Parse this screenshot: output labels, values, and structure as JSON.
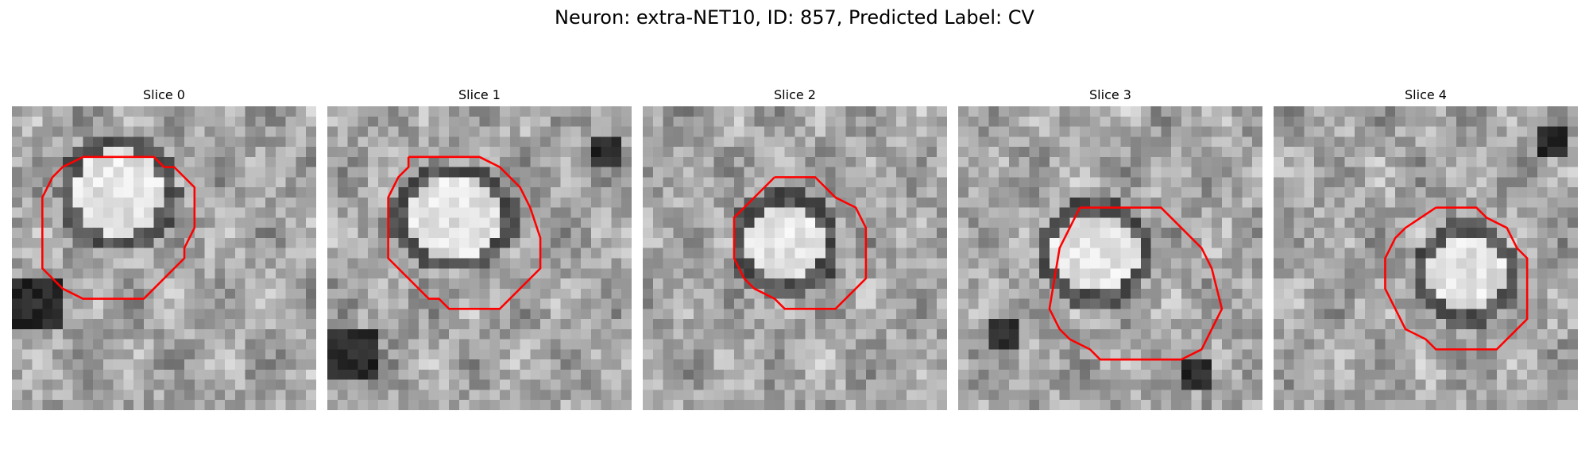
{
  "suptitle": "Neuron: extra-NET10, ID: 857, Predicted Label: CV",
  "panels": [
    {
      "title": "Slice 0"
    },
    {
      "title": "Slice 1"
    },
    {
      "title": "Slice 2"
    },
    {
      "title": "Slice 3"
    },
    {
      "title": "Slice 4"
    }
  ],
  "colors": {
    "contour": "#ff0000",
    "background": "#ffffff"
  }
}
